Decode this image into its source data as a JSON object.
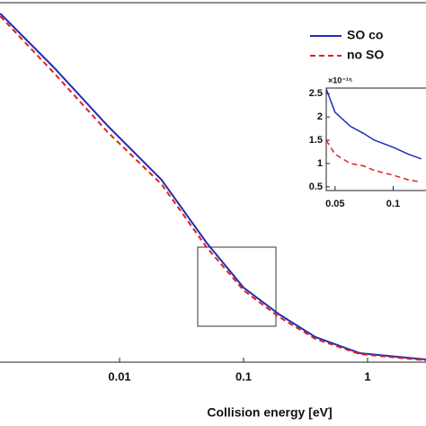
{
  "chart_data": [
    {
      "type": "line",
      "x_label": "Collision energy [eV]",
      "xscale": "log",
      "x": [
        0.00109,
        0.00295,
        0.00802,
        0.0218,
        0.0503,
        0.1,
        0.195,
        0.379,
        0.866,
        2.96
      ],
      "xlim": [
        0.001086,
        2.96
      ],
      "xticks": [
        0.01,
        0.1,
        1
      ],
      "ylim": [
        0,
        400
      ],
      "series": [
        {
          "name": "SO co",
          "color": "#1f2fb4",
          "dash": "solid",
          "values": [
            388,
            328,
            263,
            203,
            133,
            83,
            53,
            28,
            10,
            3
          ]
        },
        {
          "name": "no SO",
          "color": "#e02020",
          "dash": "dashed",
          "values": [
            385,
            322,
            256,
            198,
            128,
            80,
            50,
            26,
            9,
            2
          ]
        }
      ],
      "legend": "upper right"
    },
    {
      "type": "line",
      "inset": true,
      "xscale": "log",
      "y_exponent": "×10⁻¹⁵",
      "x": [
        0.045,
        0.05,
        0.06,
        0.07,
        0.08,
        0.1,
        0.12,
        0.14
      ],
      "xlim": [
        0.045,
        0.148
      ],
      "xticks": [
        0.05,
        0.1
      ],
      "ylim": [
        0.42,
        2.62
      ],
      "yticks": [
        0.5,
        1,
        1.5,
        2,
        2.5
      ],
      "series": [
        {
          "name": "SO co",
          "color": "#1f2fb4",
          "dash": "solid",
          "values": [
            2.6,
            2.1,
            1.8,
            1.65,
            1.5,
            1.35,
            1.2,
            1.1
          ]
        },
        {
          "name": "no SO",
          "color": "#e02020",
          "dash": "dashed",
          "values": [
            1.5,
            1.2,
            1.0,
            0.95,
            0.85,
            0.75,
            0.65,
            0.6
          ]
        }
      ]
    }
  ]
}
